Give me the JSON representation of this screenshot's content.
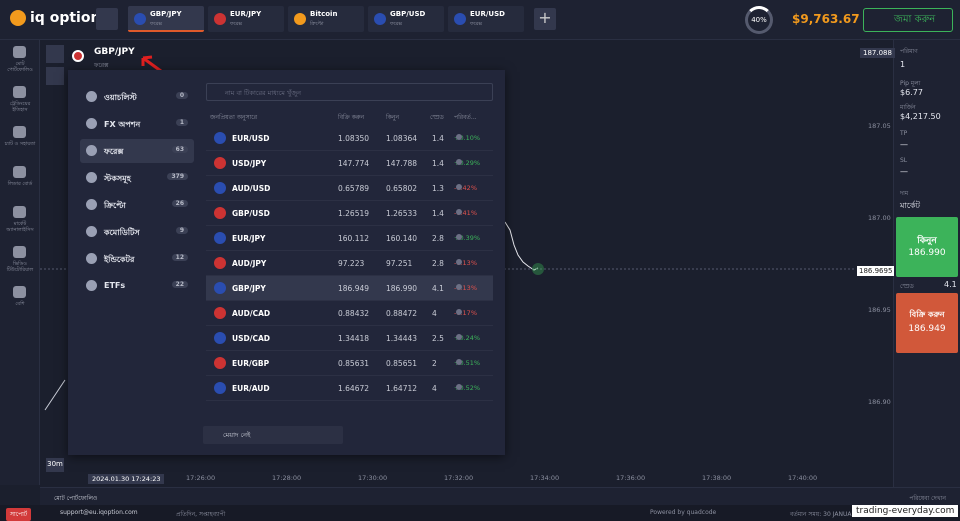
{
  "header": {
    "logo": "iq option",
    "tabs": [
      {
        "name": "GBP/JPY",
        "type": "ফরেক্স"
      },
      {
        "name": "EUR/JPY",
        "type": "ফরেক্স"
      },
      {
        "name": "Bitcoin",
        "type": "ক্রিপ্টো"
      },
      {
        "name": "GBP/USD",
        "type": "ফরেক্স"
      },
      {
        "name": "EUR/USD",
        "type": "ফরেক্স"
      }
    ],
    "progress": "40%",
    "balance": "$9,763.67",
    "deposit": "জমা করুন"
  },
  "sidebar": [
    "মোট পোর্টফোলিও",
    "ট্রেডিংয়ের ইতিহাস",
    "চ্যাট ও সহায়তা",
    "লিডার বোর্ড",
    "মার্কেট অ্যানালাইসিস",
    "ভিডিও টিউটোরিয়াল",
    "বেশি"
  ],
  "asset": {
    "name": "GBP/JPY",
    "type": "ফরেক্স"
  },
  "categories": [
    {
      "label": "ওয়াচলিস্ট",
      "count": 0
    },
    {
      "label": "FX অপশন",
      "count": 1
    },
    {
      "label": "ফরেক্স",
      "count": 63
    },
    {
      "label": "স্টকসমূহ",
      "count": 379
    },
    {
      "label": "ক্রিপ্টো",
      "count": 26
    },
    {
      "label": "কমোডিটিস",
      "count": 9
    },
    {
      "label": "ইন্ডিকেটর",
      "count": 12
    },
    {
      "label": "ETFs",
      "count": 22
    }
  ],
  "search": "নাম বা টিকারের মাধ্যমে খুঁজুন",
  "table": {
    "columns": [
      "জনপ্রিয়তা অনুসারে",
      "বিক্রি করুন",
      "কিনুন",
      "স্প্রেড",
      "পরিবর্ত..."
    ],
    "rows": [
      [
        "EUR/USD",
        "1.08350",
        "1.08364",
        "1.4",
        "+0.10%"
      ],
      [
        "USD/JPY",
        "147.774",
        "147.788",
        "1.4",
        "+0.29%"
      ],
      [
        "AUD/USD",
        "0.65789",
        "0.65802",
        "1.3",
        "-0.42%"
      ],
      [
        "GBP/USD",
        "1.26519",
        "1.26533",
        "1.4",
        "-0.41%"
      ],
      [
        "EUR/JPY",
        "160.112",
        "160.140",
        "2.8",
        "+0.39%"
      ],
      [
        "AUD/JPY",
        "97.223",
        "97.251",
        "2.8",
        "-0.13%"
      ],
      [
        "GBP/JPY",
        "186.949",
        "186.990",
        "4.1",
        "-0.13%"
      ],
      [
        "AUD/CAD",
        "0.88432",
        "0.88472",
        "4",
        "-0.17%"
      ],
      [
        "USD/CAD",
        "1.34418",
        "1.34443",
        "2.5",
        "+0.24%"
      ],
      [
        "EUR/GBP",
        "0.85631",
        "0.85651",
        "2",
        "+0.51%"
      ],
      [
        "EUR/AUD",
        "1.64672",
        "1.64712",
        "4",
        "+0.52%"
      ]
    ]
  },
  "expiry": "মেয়াদ নেই",
  "chart": {
    "price_top": "187.088",
    "y_labels": [
      "187.05",
      "187.00",
      "186.95",
      "186.90"
    ],
    "current": "186.9695",
    "times": [
      "17:26:00",
      "17:28:00",
      "17:30:00",
      "17:32:00",
      "17:34:00",
      "17:36:00",
      "17:38:00",
      "17:40:00"
    ],
    "timestamp": "2024.01.30 17:24:23",
    "timeframe": "30m"
  },
  "deal": {
    "amount_label": "পরিমাণ",
    "amount": "1",
    "pip_label": "Pip মূল্য",
    "pip": "$6.77",
    "margin_label": "মার্জিন",
    "margin": "$4,217.50",
    "tp_label": "TP",
    "tp": "—",
    "sl_label": "SL",
    "sl": "—",
    "price_label": "দাম",
    "price": "মার্কেট",
    "buy": "কিনুন",
    "buy_price": "186.990",
    "spread_label": "স্প্রেড",
    "spread": "4.1",
    "sell": "বিক্রি করুন",
    "sell_price": "186.949"
  },
  "bottom": {
    "portfolio": "মোট পোর্টফোলিও",
    "services": "পরিষেবা দেখান"
  },
  "footer": {
    "support": "সাপোর্ট",
    "email": "support@eu.iqoption.com",
    "hours": "প্রতিদিন, সপ্তাহব্যাপী",
    "powered": "Powered by quadcode",
    "time": "বর্তমান সময়: 30 JANUARY, 17:33:30 (UTC+6)",
    "watermark": "trading-everyday.com"
  }
}
